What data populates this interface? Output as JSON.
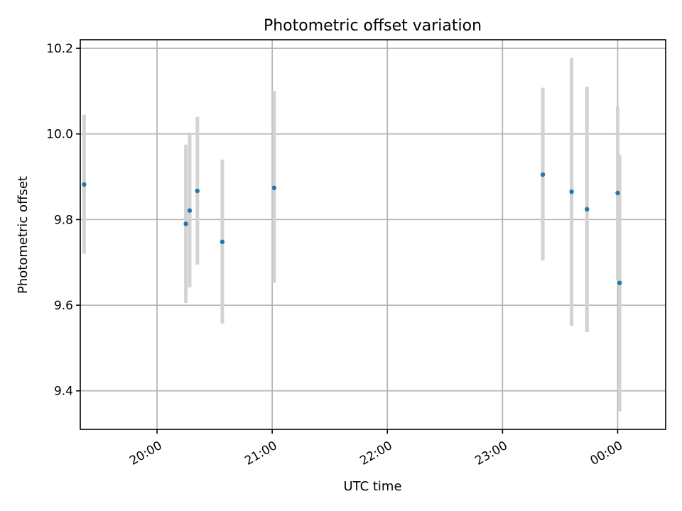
{
  "chart_data": {
    "type": "scatter",
    "title": "Photometric offset variation",
    "xlabel": "UTC time",
    "ylabel": "Photometric offset",
    "x_type": "time",
    "xlim": [
      "19:20",
      "00:25"
    ],
    "ylim": [
      9.31,
      10.22
    ],
    "x_ticks": [
      "20:00",
      "21:00",
      "22:00",
      "23:00",
      "00:00"
    ],
    "y_ticks": [
      9.4,
      9.6,
      9.8,
      10.0,
      10.2
    ],
    "y_tick_labels": [
      "9.4",
      "9.6",
      "9.8",
      "10.0",
      "10.2"
    ],
    "grid": true,
    "marker_color": "#1f77b4",
    "errorbar_color": "#d3d3d3",
    "points": [
      {
        "x": "19:22",
        "y": 9.882,
        "ylow": 9.72,
        "yhigh": 10.045
      },
      {
        "x": "20:15",
        "y": 9.79,
        "ylow": 9.605,
        "yhigh": 9.975
      },
      {
        "x": "20:17",
        "y": 9.821,
        "ylow": 9.642,
        "yhigh": 10.003
      },
      {
        "x": "20:21",
        "y": 9.867,
        "ylow": 9.695,
        "yhigh": 10.04
      },
      {
        "x": "20:34",
        "y": 9.748,
        "ylow": 9.557,
        "yhigh": 9.94
      },
      {
        "x": "21:01",
        "y": 9.874,
        "ylow": 9.652,
        "yhigh": 10.1
      },
      {
        "x": "23:21",
        "y": 9.905,
        "ylow": 9.705,
        "yhigh": 10.108
      },
      {
        "x": "23:36",
        "y": 9.865,
        "ylow": 9.552,
        "yhigh": 10.178
      },
      {
        "x": "23:44",
        "y": 9.824,
        "ylow": 9.537,
        "yhigh": 10.11
      },
      {
        "x": "24:00",
        "y": 9.862,
        "ylow": 9.66,
        "yhigh": 10.065
      },
      {
        "x": "24:01",
        "y": 9.652,
        "ylow": 9.352,
        "yhigh": 9.952
      }
    ]
  }
}
